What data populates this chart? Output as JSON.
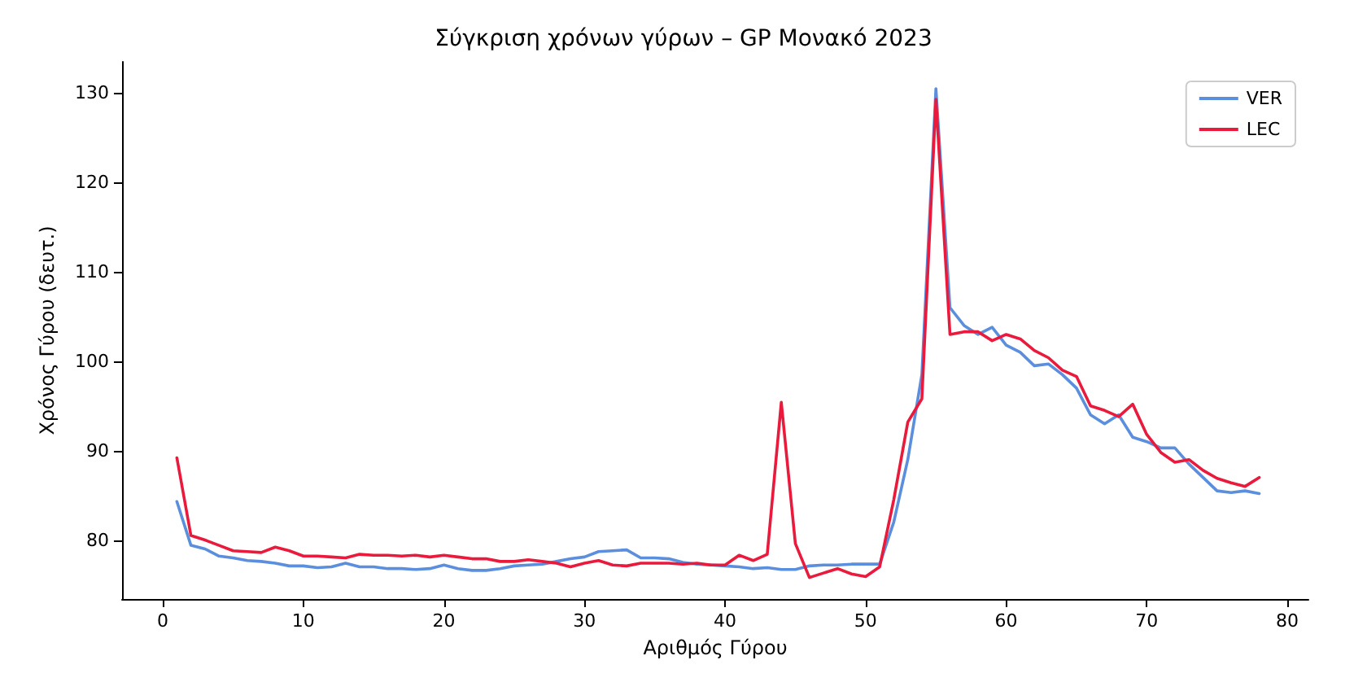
{
  "chart_data": {
    "type": "line",
    "title": "Σύγκριση χρόνων γύρων – GP Μονακό 2023",
    "xlabel": "Αριθμός Γύρου",
    "ylabel": "Χρόνος Γύρου (δευτ.)",
    "x": [
      1,
      2,
      3,
      4,
      5,
      6,
      7,
      8,
      9,
      10,
      11,
      12,
      13,
      14,
      15,
      16,
      17,
      18,
      19,
      20,
      21,
      22,
      23,
      24,
      25,
      26,
      27,
      28,
      29,
      30,
      31,
      32,
      33,
      34,
      35,
      36,
      37,
      38,
      39,
      40,
      41,
      42,
      43,
      44,
      45,
      46,
      47,
      48,
      49,
      50,
      51,
      52,
      53,
      54,
      55,
      56,
      57,
      58,
      59,
      60,
      61,
      62,
      63,
      64,
      65,
      66,
      67,
      68,
      69,
      70,
      71,
      72,
      73,
      74,
      75,
      76,
      77,
      78
    ],
    "series": [
      {
        "name": "VER",
        "color": "#5b8fdd",
        "values": [
          84.3,
          79.4,
          79.0,
          78.2,
          78.0,
          77.7,
          77.6,
          77.4,
          77.1,
          77.1,
          76.9,
          77.0,
          77.4,
          77.0,
          77.0,
          76.8,
          76.8,
          76.7,
          76.8,
          77.2,
          76.8,
          76.6,
          76.6,
          76.8,
          77.1,
          77.2,
          77.3,
          77.6,
          77.9,
          78.1,
          78.7,
          78.8,
          78.9,
          78.0,
          78.0,
          77.9,
          77.5,
          77.3,
          77.2,
          77.1,
          77.0,
          76.8,
          76.9,
          76.7,
          76.7,
          77.1,
          77.2,
          77.2,
          77.3,
          77.3,
          77.3,
          82.0,
          89.0,
          98.5,
          130.5,
          106.0,
          104.0,
          103.0,
          103.8,
          101.8,
          101.0,
          99.5,
          99.7,
          98.5,
          97.0,
          94.0,
          93.0,
          94.0,
          91.5,
          91.0,
          90.3,
          90.3,
          88.5,
          87.0,
          85.5,
          85.3,
          85.5,
          85.2
        ]
      },
      {
        "name": "LEC",
        "color": "#ea1a3d",
        "values": [
          89.2,
          80.5,
          80.0,
          79.4,
          78.8,
          78.7,
          78.6,
          79.2,
          78.8,
          78.2,
          78.2,
          78.1,
          78.0,
          78.4,
          78.3,
          78.3,
          78.2,
          78.3,
          78.1,
          78.3,
          78.1,
          77.9,
          77.9,
          77.6,
          77.6,
          77.8,
          77.6,
          77.4,
          77.0,
          77.4,
          77.7,
          77.2,
          77.1,
          77.4,
          77.4,
          77.4,
          77.3,
          77.4,
          77.2,
          77.2,
          78.3,
          77.7,
          78.4,
          95.4,
          79.6,
          75.8,
          76.3,
          76.8,
          76.2,
          75.9,
          77.0,
          84.5,
          93.2,
          95.8,
          129.3,
          103.0,
          103.3,
          103.3,
          102.3,
          103.0,
          102.5,
          101.2,
          100.4,
          99.0,
          98.3,
          95.0,
          94.5,
          93.8,
          95.2,
          91.8,
          89.8,
          88.7,
          89.0,
          87.8,
          86.9,
          86.4,
          86.0,
          87.0
        ]
      }
    ],
    "xlim": [
      -2.9,
      81.5
    ],
    "xticks": [
      0,
      10,
      20,
      30,
      40,
      50,
      60,
      70,
      80
    ],
    "ylim": [
      73.4,
      133.5
    ],
    "yticks": [
      80,
      90,
      100,
      110,
      120,
      130
    ],
    "grid": false,
    "legend": "top right",
    "marker": "none",
    "line_style": "solid"
  }
}
